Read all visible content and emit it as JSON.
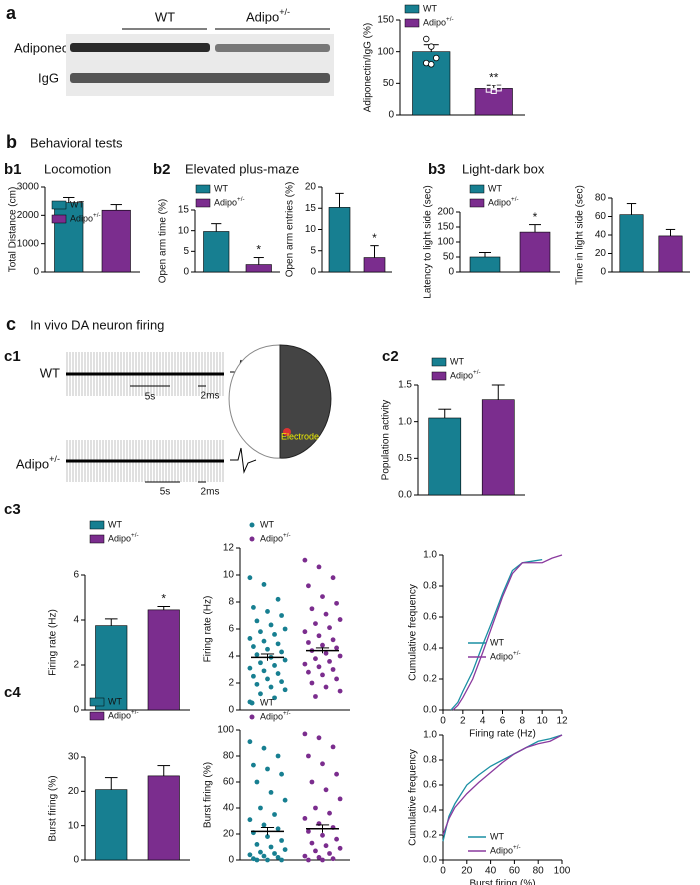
{
  "panels": {
    "a": "a",
    "b": "b",
    "b_title": "Behavioral tests",
    "b1": "b1",
    "b1_title": "Locomotion",
    "b2": "b2",
    "b2_title": "Elevated plus-maze",
    "b3": "b3",
    "b3_title": "Light-dark box",
    "c": "c",
    "c_title": "In vivo DA neuron firing",
    "c1": "c1",
    "c2": "c2",
    "c3": "c3",
    "c4": "c4"
  },
  "blot": {
    "groups": [
      "WT",
      "Adipo+/-"
    ],
    "rows": [
      "Adiponectin",
      "IgG"
    ]
  },
  "traces": {
    "labels": [
      "WT",
      "Adipo+/-"
    ],
    "scales": [
      "5s",
      "2ms",
      "5s",
      "2ms"
    ],
    "electrode": "Electrode"
  },
  "chart_data": [
    {
      "type": "bar",
      "ylabel": "Adiponectin/IgG (%)",
      "categories": [
        "WT",
        "Adipo+/-"
      ],
      "colors": [
        "#177f91",
        "#7b2d8e"
      ],
      "values": [
        100,
        42
      ],
      "errors": [
        11,
        5
      ],
      "significance": [
        null,
        "**"
      ],
      "points": [
        [
          120,
          108,
          90,
          82,
          80
        ],
        [
          47,
          44,
          42,
          40,
          38
        ]
      ],
      "point_shapes": [
        "circle",
        "square"
      ],
      "ylim": [
        0,
        150
      ],
      "yticks": [
        0,
        50,
        100,
        150
      ]
    },
    {
      "type": "bar",
      "ylabel": "Total Distance (cm)",
      "categories": [
        "WT",
        "Adipo+/-"
      ],
      "colors": [
        "#177f91",
        "#7b2d8e"
      ],
      "values": [
        2450,
        2180
      ],
      "errors": [
        180,
        200
      ],
      "ylim": [
        0,
        3000
      ],
      "yticks": [
        0,
        1000,
        2000,
        3000
      ]
    },
    {
      "type": "bar",
      "ylabel": "Open arm time (%)",
      "categories": [
        "WT",
        "Adipo+/-"
      ],
      "colors": [
        "#177f91",
        "#7b2d8e"
      ],
      "values": [
        9.8,
        1.8
      ],
      "errors": [
        1.9,
        1.7
      ],
      "significance": [
        null,
        "*"
      ],
      "ylim": [
        0,
        15
      ],
      "yticks": [
        0,
        5,
        10,
        15
      ]
    },
    {
      "type": "bar",
      "ylabel": "Open arm entries (%)",
      "colors": [
        "#177f91",
        "#7b2d8e"
      ],
      "values": [
        15.2,
        3.4
      ],
      "errors": [
        3.3,
        2.8
      ],
      "significance": [
        null,
        "*"
      ],
      "ylim": [
        0,
        20
      ],
      "yticks": [
        0,
        5,
        10,
        15,
        20
      ]
    },
    {
      "type": "bar",
      "ylabel": "Latency to light side (sec)",
      "categories": [
        "WT",
        "Adipo+/-"
      ],
      "colors": [
        "#177f91",
        "#7b2d8e"
      ],
      "values": [
        50,
        133
      ],
      "errors": [
        15,
        25
      ],
      "significance": [
        null,
        "*"
      ],
      "ylim": [
        0,
        200
      ],
      "yticks": [
        0,
        50,
        100,
        150,
        200
      ]
    },
    {
      "type": "bar",
      "ylabel": "Time in light side (sec)",
      "colors": [
        "#177f91",
        "#7b2d8e"
      ],
      "values": [
        62,
        39
      ],
      "errors": [
        12,
        7
      ],
      "ylim": [
        0,
        80
      ],
      "yticks": [
        0,
        20,
        40,
        60,
        80
      ]
    },
    {
      "type": "bar",
      "ylabel": "Population activity",
      "categories": [
        "WT",
        "Adipo+/-"
      ],
      "colors": [
        "#177f91",
        "#7b2d8e"
      ],
      "values": [
        1.05,
        1.3
      ],
      "errors": [
        0.12,
        0.2
      ],
      "ylim": [
        0,
        1.5
      ],
      "yticks": [
        {
          "value": 0,
          "label": "0.0"
        },
        0.5,
        {
          "value": 1,
          "label": "1.0"
        },
        1.5
      ]
    },
    {
      "type": "bar",
      "ylabel": "Firing rate (Hz)",
      "categories": [
        "WT",
        "Adipo+/-"
      ],
      "colors": [
        "#177f91",
        "#7b2d8e"
      ],
      "values": [
        3.75,
        4.45
      ],
      "errors": [
        0.3,
        0.15
      ],
      "significance": [
        null,
        "*"
      ],
      "ylim": [
        0,
        6
      ],
      "yticks": [
        0,
        2,
        4,
        6
      ]
    },
    {
      "type": "dot",
      "ylabel": "Firing rate (Hz)",
      "categories": [
        "WT",
        "Adipo+/-"
      ],
      "colors": [
        "#177f91",
        "#7b2d8e"
      ],
      "means": [
        3.9,
        4.4
      ],
      "errors": [
        0.25,
        0.2
      ],
      "points": [
        [
          9.8,
          9.3,
          8.2,
          7.6,
          7.3,
          7.0,
          6.6,
          6.3,
          6.0,
          5.8,
          5.6,
          5.3,
          5.1,
          4.9,
          4.7,
          4.5,
          4.3,
          4.1,
          3.9,
          3.7,
          3.5,
          3.3,
          3.1,
          2.9,
          2.7,
          2.5,
          2.3,
          2.1,
          1.9,
          1.7,
          1.5,
          1.2,
          0.9,
          0.6
        ],
        [
          11.1,
          10.6,
          9.8,
          9.2,
          8.4,
          7.9,
          7.5,
          7.1,
          6.7,
          6.4,
          6.1,
          5.8,
          5.5,
          5.2,
          5.0,
          4.8,
          4.6,
          4.4,
          4.2,
          4.0,
          3.8,
          3.6,
          3.4,
          3.2,
          3.0,
          2.8,
          2.6,
          2.3,
          2.0,
          1.7,
          1.4,
          1.0
        ]
      ],
      "ylim": [
        0,
        12
      ],
      "yticks": [
        0,
        2,
        4,
        6,
        8,
        10,
        12
      ]
    },
    {
      "type": "line",
      "xlabel": "Firing rate (Hz)",
      "ylabel": "Cumulative frequency",
      "series": [
        {
          "name": "WT",
          "color": "#1a8fa3",
          "x": [
            0.8,
            1.5,
            2,
            3,
            4,
            5,
            6,
            7,
            8,
            9,
            10
          ],
          "values": [
            0,
            0.05,
            0.12,
            0.25,
            0.42,
            0.58,
            0.75,
            0.9,
            0.95,
            0.96,
            0.97
          ]
        },
        {
          "name": "Adipo+/-",
          "color": "#8a3a9e",
          "x": [
            1,
            1.5,
            2,
            3,
            4,
            5,
            6,
            7,
            8,
            9,
            10,
            11,
            12
          ],
          "values": [
            0,
            0.03,
            0.08,
            0.2,
            0.37,
            0.55,
            0.73,
            0.88,
            0.95,
            0.95,
            0.95,
            0.98,
            1.0
          ]
        }
      ],
      "xlim": [
        0,
        12
      ],
      "xticks": [
        0,
        2,
        4,
        6,
        8,
        10,
        12
      ],
      "ylim": [
        0,
        1
      ],
      "yticks": [
        {
          "value": 0,
          "label": "0.0"
        },
        0.2,
        0.4,
        0.6,
        0.8,
        {
          "value": 1,
          "label": "1.0"
        }
      ]
    },
    {
      "type": "bar",
      "ylabel": "Burst firing (%)",
      "categories": [
        "WT",
        "Adipo+/-"
      ],
      "colors": [
        "#177f91",
        "#7b2d8e"
      ],
      "values": [
        20.5,
        24.5
      ],
      "errors": [
        3.5,
        3
      ],
      "ylim": [
        0,
        30
      ],
      "yticks": [
        0,
        10,
        20,
        30
      ]
    },
    {
      "type": "dot",
      "ylabel": "Burst firing (%)",
      "categories": [
        "WT",
        "Adipo+/-"
      ],
      "colors": [
        "#177f91",
        "#7b2d8e"
      ],
      "means": [
        22,
        24
      ],
      "errors": [
        3,
        3
      ],
      "points": [
        [
          91,
          86,
          80,
          73,
          70,
          66,
          60,
          52,
          46,
          40,
          35,
          31,
          27,
          24,
          21,
          18,
          15,
          12,
          10,
          8,
          6,
          5,
          4,
          3,
          2,
          1,
          0,
          0,
          0
        ],
        [
          97,
          94,
          87,
          80,
          74,
          66,
          60,
          54,
          47,
          40,
          36,
          32,
          28,
          25,
          22,
          19,
          16,
          13,
          11,
          9,
          7,
          5,
          3,
          2,
          1,
          0,
          0
        ]
      ],
      "ylim": [
        0,
        100
      ],
      "yticks": [
        0,
        20,
        40,
        60,
        80,
        100
      ]
    },
    {
      "type": "line",
      "xlabel": "Burst firing (%)",
      "ylabel": "Cumulative frequency",
      "series": [
        {
          "name": "WT",
          "color": "#1a8fa3",
          "x": [
            0,
            5,
            10,
            20,
            30,
            40,
            50,
            60,
            70,
            80,
            90,
            100
          ],
          "values": [
            0.15,
            0.35,
            0.45,
            0.6,
            0.68,
            0.75,
            0.8,
            0.85,
            0.9,
            0.95,
            0.97,
            1.0
          ]
        },
        {
          "name": "Adipo+/-",
          "color": "#8a3a9e",
          "x": [
            0,
            5,
            10,
            20,
            30,
            40,
            50,
            60,
            70,
            80,
            90,
            100
          ],
          "values": [
            0.2,
            0.33,
            0.42,
            0.53,
            0.62,
            0.7,
            0.78,
            0.85,
            0.9,
            0.93,
            0.95,
            1.0
          ]
        }
      ],
      "xlim": [
        0,
        100
      ],
      "xticks": [
        0,
        20,
        40,
        60,
        80,
        100
      ],
      "ylim": [
        0,
        1
      ],
      "yticks": [
        {
          "value": 0,
          "label": "0.0"
        },
        0.2,
        0.4,
        0.6,
        0.8,
        {
          "value": 1,
          "label": "1.0"
        }
      ]
    }
  ]
}
